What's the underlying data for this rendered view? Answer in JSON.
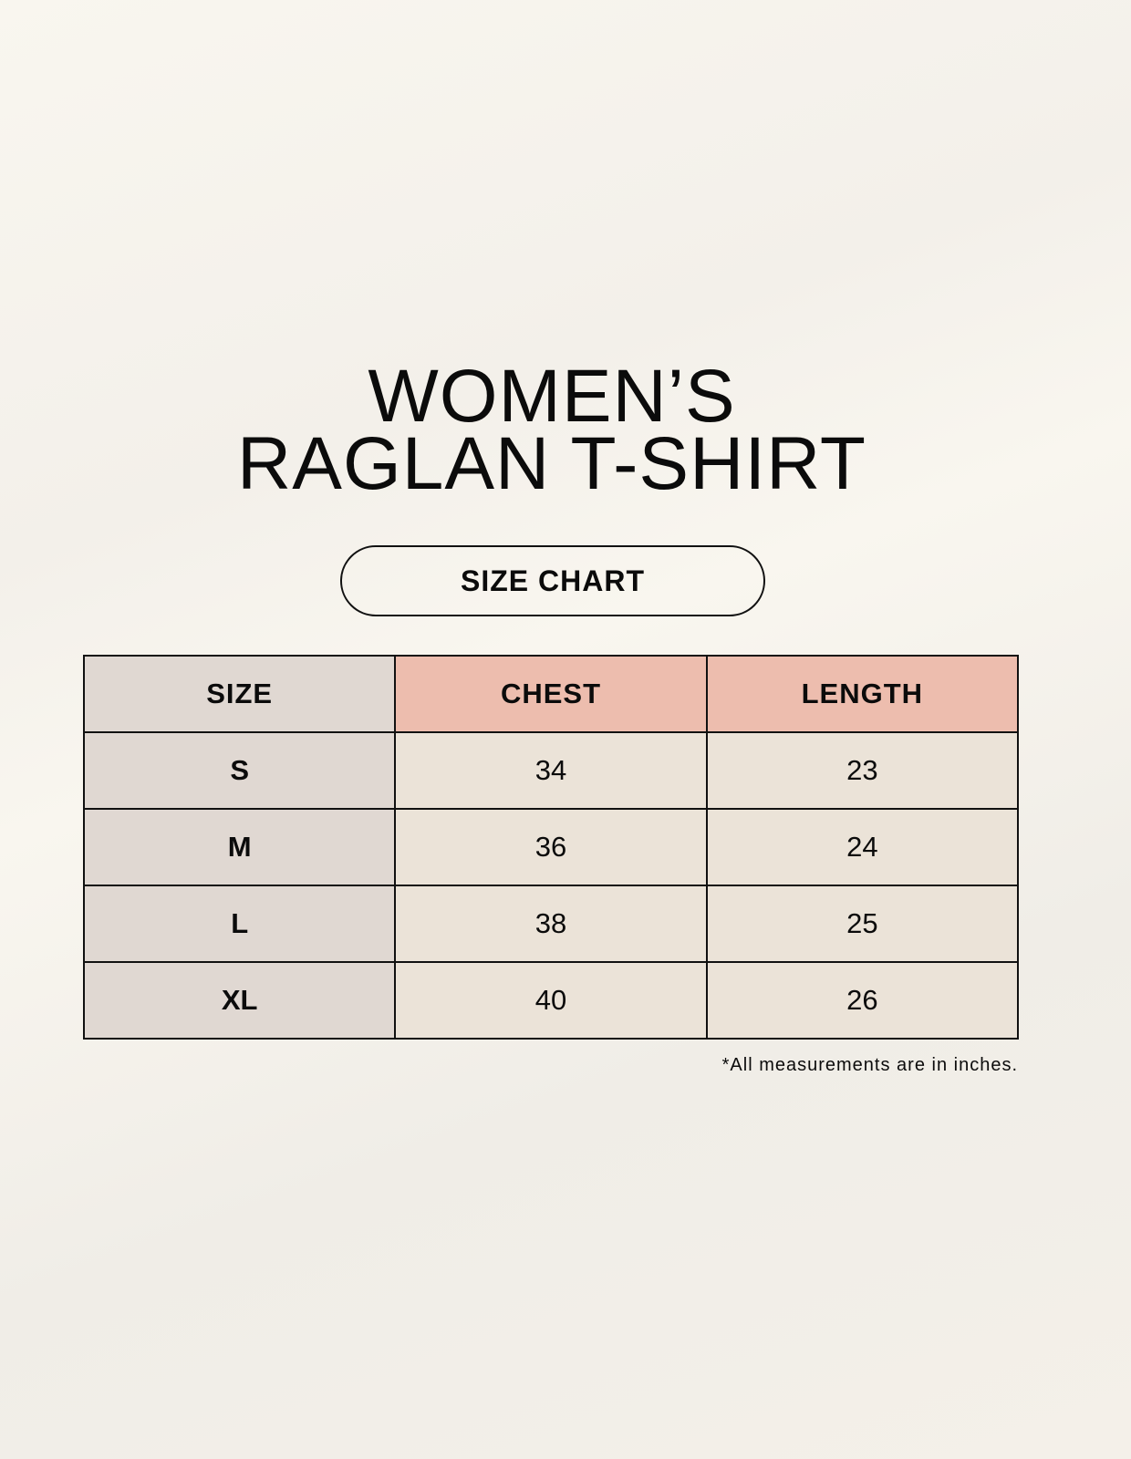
{
  "title": {
    "line1": "WOMEN’S",
    "line2": "RAGLAN T-SHIRT"
  },
  "subtitle": "SIZE CHART",
  "table": {
    "headers": [
      "SIZE",
      "CHEST",
      "LENGTH"
    ],
    "rows": [
      [
        "S",
        "34",
        "23"
      ],
      [
        "M",
        "36",
        "24"
      ],
      [
        "L",
        "38",
        "25"
      ],
      [
        "XL",
        "40",
        "26"
      ]
    ]
  },
  "note": "*All measurements are in inches.",
  "colors": {
    "size_column": "#e0d8d2",
    "header_accent": "#edbdae",
    "value_cells": "#ebe3d8"
  }
}
